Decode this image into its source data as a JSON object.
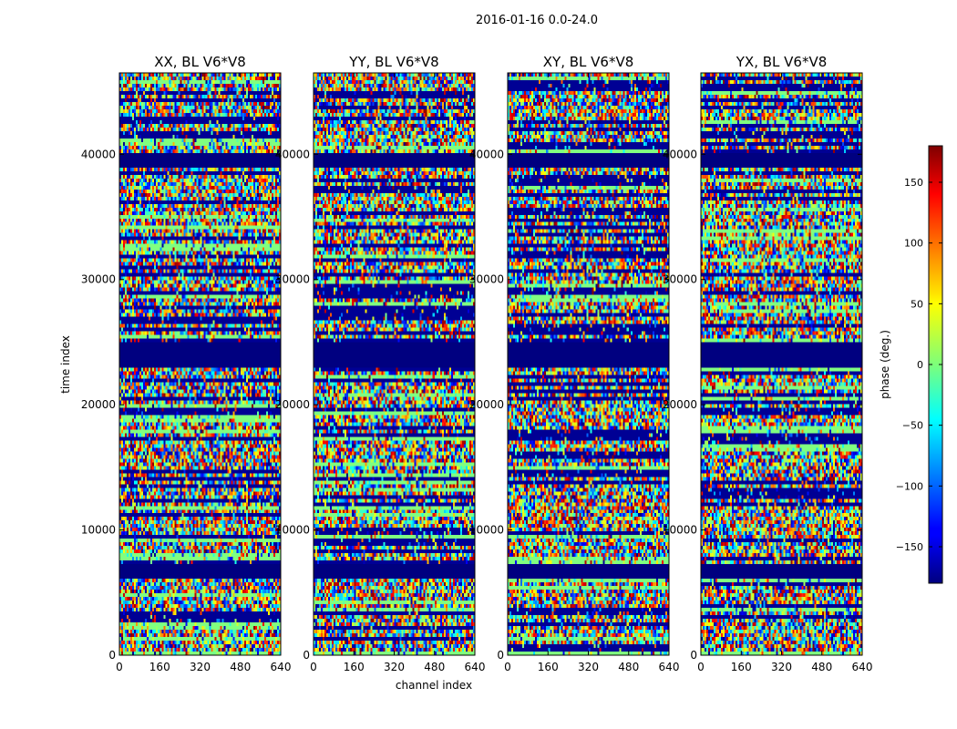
{
  "figure": {
    "suptitle": "2016-01-16 0.0-24.0"
  },
  "chart_data": {
    "type": "heatmap",
    "title": "2016-01-16 0.0-24.0",
    "xlabel": "channel index",
    "ylabel": "time index",
    "xlim": [
      0,
      640
    ],
    "ylim": [
      0,
      46500
    ],
    "x_ticks": [
      0,
      160,
      320,
      480,
      640
    ],
    "x_tick_labels": [
      "0",
      "160",
      "320",
      "480",
      "640"
    ],
    "y_ticks": [
      0,
      10000,
      20000,
      30000,
      40000
    ],
    "y_tick_labels": [
      "0",
      "10000",
      "20000",
      "30000",
      "40000"
    ],
    "panels": [
      {
        "name": "XX",
        "title": "XX, BL V6*V8"
      },
      {
        "name": "YY",
        "title": "YY, BL V6*V8"
      },
      {
        "name": "XY",
        "title": "XY, BL V6*V8"
      },
      {
        "name": "YX",
        "title": "YX, BL V6*V8"
      }
    ],
    "colorbar": {
      "label": "phase (deg.)",
      "range": [
        -180,
        180
      ],
      "ticks": [
        150,
        100,
        50,
        0,
        -50,
        -100,
        -150
      ],
      "tick_labels": [
        "150",
        "100",
        "50",
        "0",
        "−50",
        "−100",
        "−150"
      ]
    },
    "flagged_time_bands": [
      [
        39000,
        40000
      ],
      [
        23000,
        25000
      ],
      [
        6200,
        7200
      ]
    ]
  }
}
